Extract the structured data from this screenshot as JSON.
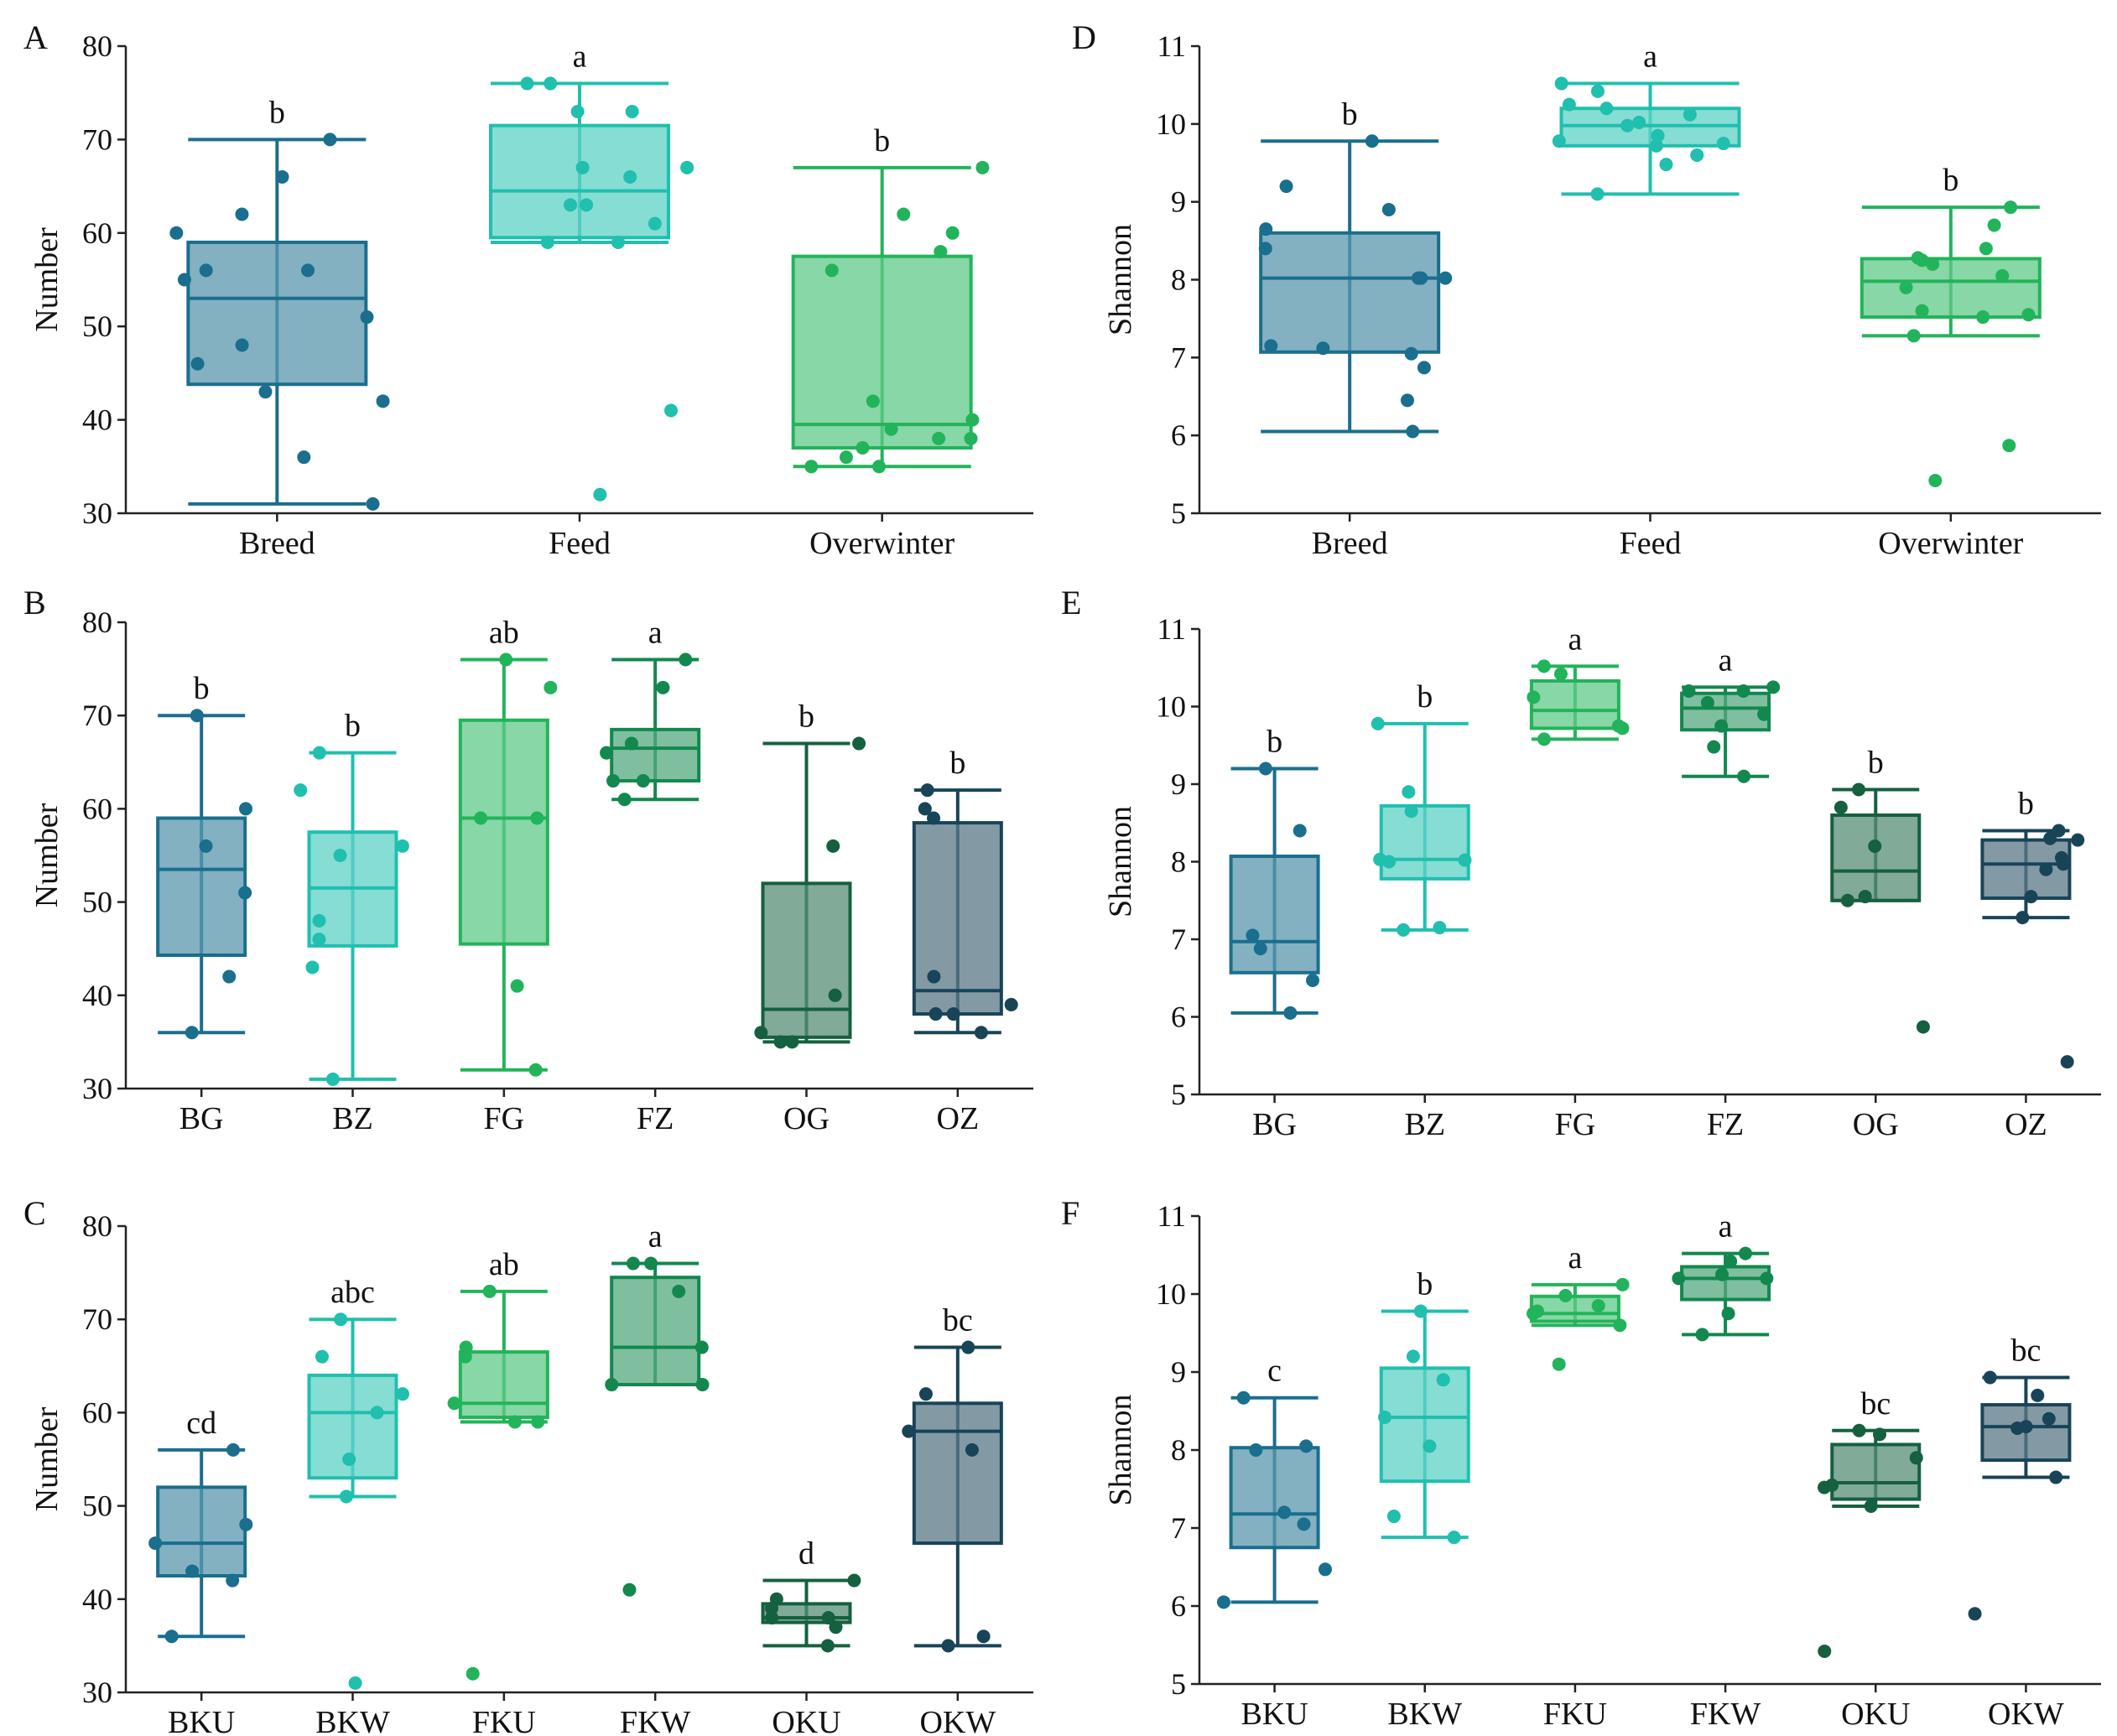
{
  "figure": {
    "title": ""
  },
  "chart_data": [
    {
      "panel": "A",
      "type": "box",
      "ylabel": "Number",
      "ylim": [
        30,
        80
      ],
      "yticks": [
        30,
        40,
        50,
        60,
        70,
        80
      ],
      "groups": [
        {
          "name": "Breed",
          "color": "#1a6e8e",
          "min": 31,
          "q1": 43.8,
          "median": 53,
          "q3": 59,
          "max": 70,
          "letter": "b",
          "points": [
            70,
            66,
            62,
            60,
            56,
            56,
            55,
            51,
            48,
            46,
            43,
            42,
            36,
            31
          ]
        },
        {
          "name": "Feed",
          "color": "#20bfae",
          "min": 59,
          "q1": 59.5,
          "median": 64.5,
          "q3": 71.5,
          "max": 76,
          "letter": "a",
          "points": [
            76,
            76,
            73,
            73,
            67,
            67,
            66,
            63,
            63,
            61,
            59,
            59,
            41,
            32
          ]
        },
        {
          "name": "Overwinter",
          "color": "#22b45a",
          "min": 35,
          "q1": 37,
          "median": 39.5,
          "q3": 57.5,
          "max": 67,
          "letter": "b",
          "points": [
            67,
            62,
            60,
            58,
            56,
            42,
            40,
            39,
            38,
            38,
            37,
            36,
            35,
            35
          ]
        }
      ]
    },
    {
      "panel": "B",
      "type": "box",
      "ylabel": "Number",
      "ylim": [
        30,
        80
      ],
      "yticks": [
        30,
        40,
        50,
        60,
        70,
        80
      ],
      "groups": [
        {
          "name": "BG",
          "color": "#1a6e8e",
          "min": 36,
          "q1": 44.3,
          "median": 53.5,
          "q3": 59,
          "max": 70,
          "letter": "b",
          "points": [
            70,
            60,
            56,
            51,
            42,
            36
          ]
        },
        {
          "name": "BZ",
          "color": "#20bfae",
          "min": 31,
          "q1": 45.3,
          "median": 51.5,
          "q3": 57.5,
          "max": 66,
          "letter": "b",
          "points": [
            66,
            62,
            56,
            55,
            48,
            46,
            43,
            31
          ]
        },
        {
          "name": "FG",
          "color": "#22b45a",
          "min": 32,
          "q1": 45.5,
          "median": 59,
          "q3": 69.5,
          "max": 76,
          "letter": "ab",
          "points": [
            76,
            73,
            59,
            59,
            41,
            32
          ]
        },
        {
          "name": "FZ",
          "color": "#12884e",
          "min": 61,
          "q1": 63,
          "median": 66.5,
          "q3": 68.5,
          "max": 76,
          "letter": "a",
          "points": [
            76,
            73,
            67,
            66,
            63,
            63,
            61
          ]
        },
        {
          "name": "OG",
          "color": "#15603f",
          "min": 35,
          "q1": 35.5,
          "median": 38.5,
          "q3": 52,
          "max": 67,
          "letter": "b",
          "points": [
            67,
            56,
            40,
            36,
            35,
            35
          ]
        },
        {
          "name": "OZ",
          "color": "#184458",
          "min": 36,
          "q1": 38,
          "median": 40.5,
          "q3": 58.5,
          "max": 62,
          "letter": "b",
          "points": [
            62,
            60,
            59,
            42,
            39,
            38,
            38,
            36
          ]
        }
      ]
    },
    {
      "panel": "C",
      "type": "box",
      "ylabel": "Number",
      "ylim": [
        30,
        80
      ],
      "yticks": [
        30,
        40,
        50,
        60,
        70,
        80
      ],
      "groups": [
        {
          "name": "BKU",
          "color": "#1a6e8e",
          "min": 36,
          "q1": 42.5,
          "median": 46,
          "q3": 52,
          "max": 56,
          "letter": "cd",
          "points": [
            56,
            48,
            46,
            43,
            42,
            36
          ]
        },
        {
          "name": "BKW",
          "color": "#20bfae",
          "min": 51,
          "q1": 53,
          "median": 60,
          "q3": 64,
          "max": 70,
          "letter": "abc",
          "points": [
            70,
            66,
            62,
            60,
            55,
            51,
            31
          ]
        },
        {
          "name": "FKU",
          "color": "#22b45a",
          "min": 59,
          "q1": 59.5,
          "median": 61,
          "q3": 66.5,
          "max": 73,
          "letter": "ab",
          "points": [
            73,
            67,
            66,
            61,
            59,
            59,
            32
          ]
        },
        {
          "name": "FKW",
          "color": "#12884e",
          "min": 63,
          "q1": 63,
          "median": 67,
          "q3": 74.5,
          "max": 76,
          "letter": "a",
          "points": [
            76,
            76,
            73,
            67,
            63,
            63,
            41
          ]
        },
        {
          "name": "OKU",
          "color": "#15603f",
          "min": 35,
          "q1": 37.5,
          "median": 38,
          "q3": 39.5,
          "max": 42,
          "letter": "d",
          "points": [
            42,
            40,
            39,
            38,
            38,
            37,
            35
          ]
        },
        {
          "name": "OKW",
          "color": "#184458",
          "min": 35,
          "q1": 46,
          "median": 58,
          "q3": 61,
          "max": 67,
          "letter": "bc",
          "points": [
            67,
            62,
            58,
            56,
            36,
            35
          ]
        }
      ]
    },
    {
      "panel": "D",
      "type": "box",
      "ylabel": "Shannon",
      "ylim": [
        5,
        11
      ],
      "yticks": [
        5,
        6,
        7,
        8,
        9,
        10,
        11
      ],
      "groups": [
        {
          "name": "Breed",
          "color": "#1a6e8e",
          "min": 6.05,
          "q1": 7.07,
          "median": 8.02,
          "q3": 8.6,
          "max": 9.78,
          "letter": "b",
          "points": [
            9.78,
            9.2,
            8.9,
            8.65,
            8.4,
            8.02,
            8.02,
            8.02,
            7.15,
            7.12,
            7.05,
            6.87,
            6.45,
            6.05
          ]
        },
        {
          "name": "Feed",
          "color": "#20bfae",
          "min": 9.1,
          "q1": 9.72,
          "median": 9.98,
          "q3": 10.2,
          "max": 10.52,
          "letter": "a",
          "points": [
            10.52,
            10.42,
            10.25,
            10.2,
            10.12,
            10.02,
            9.98,
            9.85,
            9.78,
            9.75,
            9.72,
            9.6,
            9.48,
            9.1
          ]
        },
        {
          "name": "Overwinter",
          "color": "#22b45a",
          "min": 7.28,
          "q1": 7.52,
          "median": 7.98,
          "q3": 8.27,
          "max": 8.93,
          "letter": "b",
          "points": [
            8.93,
            8.7,
            8.4,
            8.28,
            8.25,
            8.2,
            8.05,
            7.9,
            7.6,
            7.55,
            7.52,
            7.28,
            5.87,
            5.42
          ]
        }
      ]
    },
    {
      "panel": "E",
      "type": "box",
      "ylabel": "Shannon",
      "ylim": [
        5,
        11
      ],
      "yticks": [
        5,
        6,
        7,
        8,
        9,
        10,
        11
      ],
      "groups": [
        {
          "name": "BG",
          "color": "#1a6e8e",
          "min": 6.05,
          "q1": 6.57,
          "median": 6.97,
          "q3": 8.07,
          "max": 9.2,
          "letter": "b",
          "points": [
            9.2,
            8.4,
            7.05,
            6.88,
            6.47,
            6.05
          ]
        },
        {
          "name": "BZ",
          "color": "#20bfae",
          "min": 7.12,
          "q1": 7.78,
          "median": 8.03,
          "q3": 8.72,
          "max": 9.78,
          "letter": "b",
          "points": [
            9.78,
            8.9,
            8.65,
            8.03,
            8.02,
            8.0,
            7.15,
            7.12
          ]
        },
        {
          "name": "FG",
          "color": "#22b45a",
          "min": 9.58,
          "q1": 9.72,
          "median": 9.95,
          "q3": 10.33,
          "max": 10.52,
          "letter": "a",
          "points": [
            10.52,
            10.42,
            10.12,
            9.75,
            9.72,
            9.58
          ]
        },
        {
          "name": "FZ",
          "color": "#12884e",
          "min": 9.1,
          "q1": 9.7,
          "median": 9.98,
          "q3": 10.17,
          "max": 10.25,
          "letter": "a",
          "points": [
            10.25,
            10.2,
            10.2,
            10.05,
            9.9,
            9.75,
            9.48,
            9.1
          ]
        },
        {
          "name": "OG",
          "color": "#15603f",
          "min": 7.5,
          "q1": 7.5,
          "median": 7.88,
          "q3": 8.6,
          "max": 8.93,
          "letter": "b",
          "points": [
            8.93,
            8.7,
            8.2,
            7.55,
            7.5,
            5.87
          ]
        },
        {
          "name": "OZ",
          "color": "#184458",
          "min": 7.28,
          "q1": 7.53,
          "median": 7.97,
          "q3": 8.28,
          "max": 8.4,
          "letter": "b",
          "points": [
            8.4,
            8.3,
            8.28,
            8.05,
            7.97,
            7.9,
            7.55,
            7.28,
            5.42
          ]
        }
      ]
    },
    {
      "panel": "F",
      "type": "box",
      "ylabel": "Shannon",
      "ylim": [
        5,
        11
      ],
      "yticks": [
        5,
        6,
        7,
        8,
        9,
        10,
        11
      ],
      "groups": [
        {
          "name": "BKU",
          "color": "#1a6e8e",
          "min": 6.05,
          "q1": 6.75,
          "median": 7.18,
          "q3": 8.03,
          "max": 8.67,
          "letter": "c",
          "points": [
            8.67,
            8.05,
            8.0,
            7.2,
            7.05,
            6.47,
            6.05
          ]
        },
        {
          "name": "BKW",
          "color": "#20bfae",
          "min": 6.88,
          "q1": 7.6,
          "median": 8.42,
          "q3": 9.05,
          "max": 9.78,
          "letter": "b",
          "points": [
            9.78,
            9.2,
            8.9,
            8.42,
            8.05,
            7.15,
            6.88
          ]
        },
        {
          "name": "FKU",
          "color": "#22b45a",
          "min": 9.6,
          "q1": 9.65,
          "median": 9.75,
          "q3": 9.97,
          "max": 10.12,
          "letter": "a",
          "points": [
            10.12,
            9.98,
            9.85,
            9.78,
            9.75,
            9.6,
            9.1
          ]
        },
        {
          "name": "FKW",
          "color": "#12884e",
          "min": 9.48,
          "q1": 9.93,
          "median": 10.2,
          "q3": 10.35,
          "max": 10.52,
          "letter": "a",
          "points": [
            10.52,
            10.42,
            10.25,
            10.2,
            10.2,
            9.75,
            9.48
          ]
        },
        {
          "name": "OKU",
          "color": "#15603f",
          "min": 7.28,
          "q1": 7.37,
          "median": 7.58,
          "q3": 8.07,
          "max": 8.25,
          "letter": "bc",
          "points": [
            8.25,
            8.2,
            7.9,
            7.55,
            7.52,
            7.28,
            5.42
          ]
        },
        {
          "name": "OKW",
          "color": "#184458",
          "min": 7.65,
          "q1": 7.87,
          "median": 8.3,
          "q3": 8.58,
          "max": 8.93,
          "letter": "bc",
          "points": [
            8.93,
            8.7,
            8.4,
            8.3,
            8.28,
            7.65,
            5.9
          ]
        }
      ]
    }
  ]
}
